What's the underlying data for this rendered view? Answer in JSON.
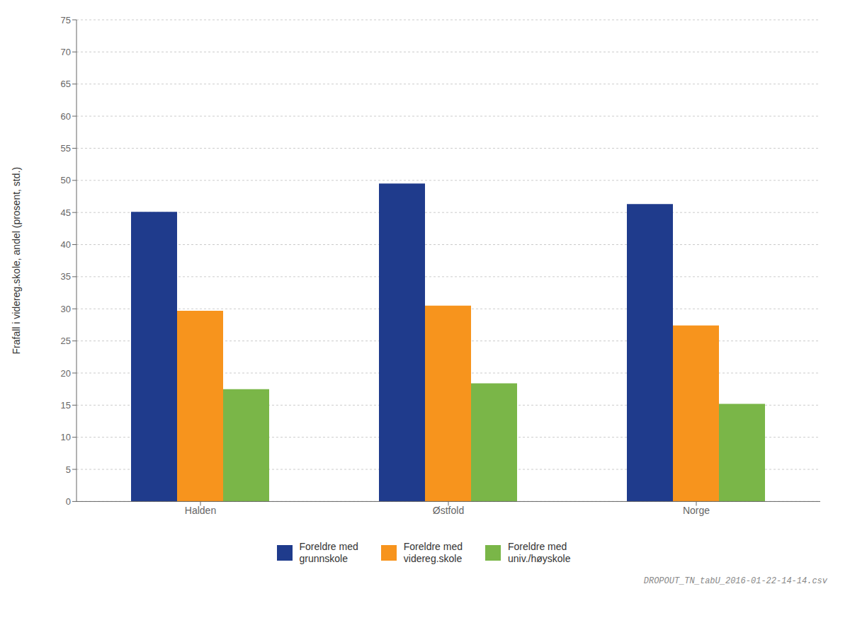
{
  "chart_data": {
    "type": "bar",
    "categories": [
      "Halden",
      "Østfold",
      "Norge"
    ],
    "series": [
      {
        "name": "Foreldre med\ngrunnskole",
        "values": [
          45.1,
          49.5,
          46.3
        ],
        "color": "#1F3B8C"
      },
      {
        "name": "Foreldre med\nvidereg.skole",
        "values": [
          29.7,
          30.5,
          27.4
        ],
        "color": "#F7941D"
      },
      {
        "name": "Foreldre med\nuniv./høyskole",
        "values": [
          17.5,
          18.4,
          15.2
        ],
        "color": "#7AB648"
      }
    ],
    "ylabel": "Frafall i videreg.skole, andel (prosent, std.)",
    "ylim": [
      0,
      75
    ],
    "yticks": [
      0,
      5,
      10,
      15,
      20,
      25,
      30,
      35,
      40,
      45,
      50,
      55,
      60,
      65,
      70,
      75
    ],
    "grid": true,
    "legend": "bottom",
    "annotations": [
      "DROPOUT_TN_tabU_2016-01-22-14-14.csv"
    ]
  }
}
